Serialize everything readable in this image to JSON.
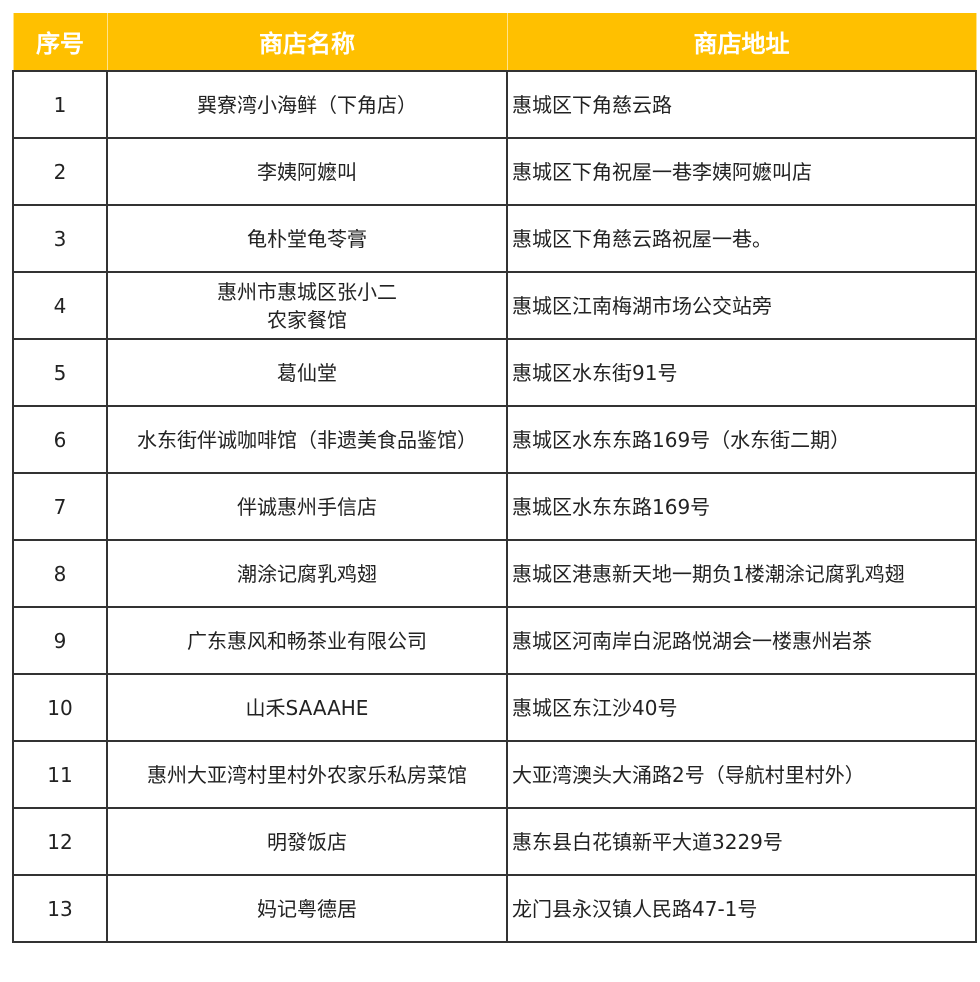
{
  "header_color": "#FFC000",
  "headers": [
    "序号",
    "商店名称",
    "商店地址"
  ],
  "rows": [
    {
      "no": "1",
      "name": "巽寮湾小海鲜（下角店）",
      "address": "惠城区下角慈云路"
    },
    {
      "no": "2",
      "name": "李姨阿嬷叫",
      "address": "惠城区下角祝屋一巷李姨阿嬷叫店"
    },
    {
      "no": "3",
      "name": "龟朴堂龟苓膏",
      "address": "惠城区下角慈云路祝屋一巷。"
    },
    {
      "no": "4",
      "name": "惠州市惠城区张小二\n农家餐馆",
      "address": "惠城区江南梅湖市场公交站旁"
    },
    {
      "no": "5",
      "name": "葛仙堂",
      "address": "惠城区水东街91号"
    },
    {
      "no": "6",
      "name": "水东街伴诚咖啡馆（非遗美食品鉴馆）",
      "address": "惠城区水东东路169号（水东街二期）"
    },
    {
      "no": "7",
      "name": "伴诚惠州手信店",
      "address": "惠城区水东东路169号"
    },
    {
      "no": "8",
      "name": "潮涂记腐乳鸡翅",
      "address": "惠城区港惠新天地一期负1楼潮涂记腐乳鸡翅"
    },
    {
      "no": "9",
      "name": "广东惠风和畅茶业有限公司",
      "address": "惠城区河南岸白泥路悦湖会一楼惠州岩茶"
    },
    {
      "no": "10",
      "name": "山禾SAAAHE",
      "address": "惠城区东江沙40号"
    },
    {
      "no": "11",
      "name": "惠州大亚湾村里村外农家乐私房菜馆",
      "address": "大亚湾澳头大涌路2号（导航村里村外）"
    },
    {
      "no": "12",
      "name": "明發饭店",
      "address": "惠东县白花镇新平大道3229号"
    },
    {
      "no": "13",
      "name": "妈记粤德居",
      "address": "龙门县永汉镇人民路47-1号"
    }
  ]
}
